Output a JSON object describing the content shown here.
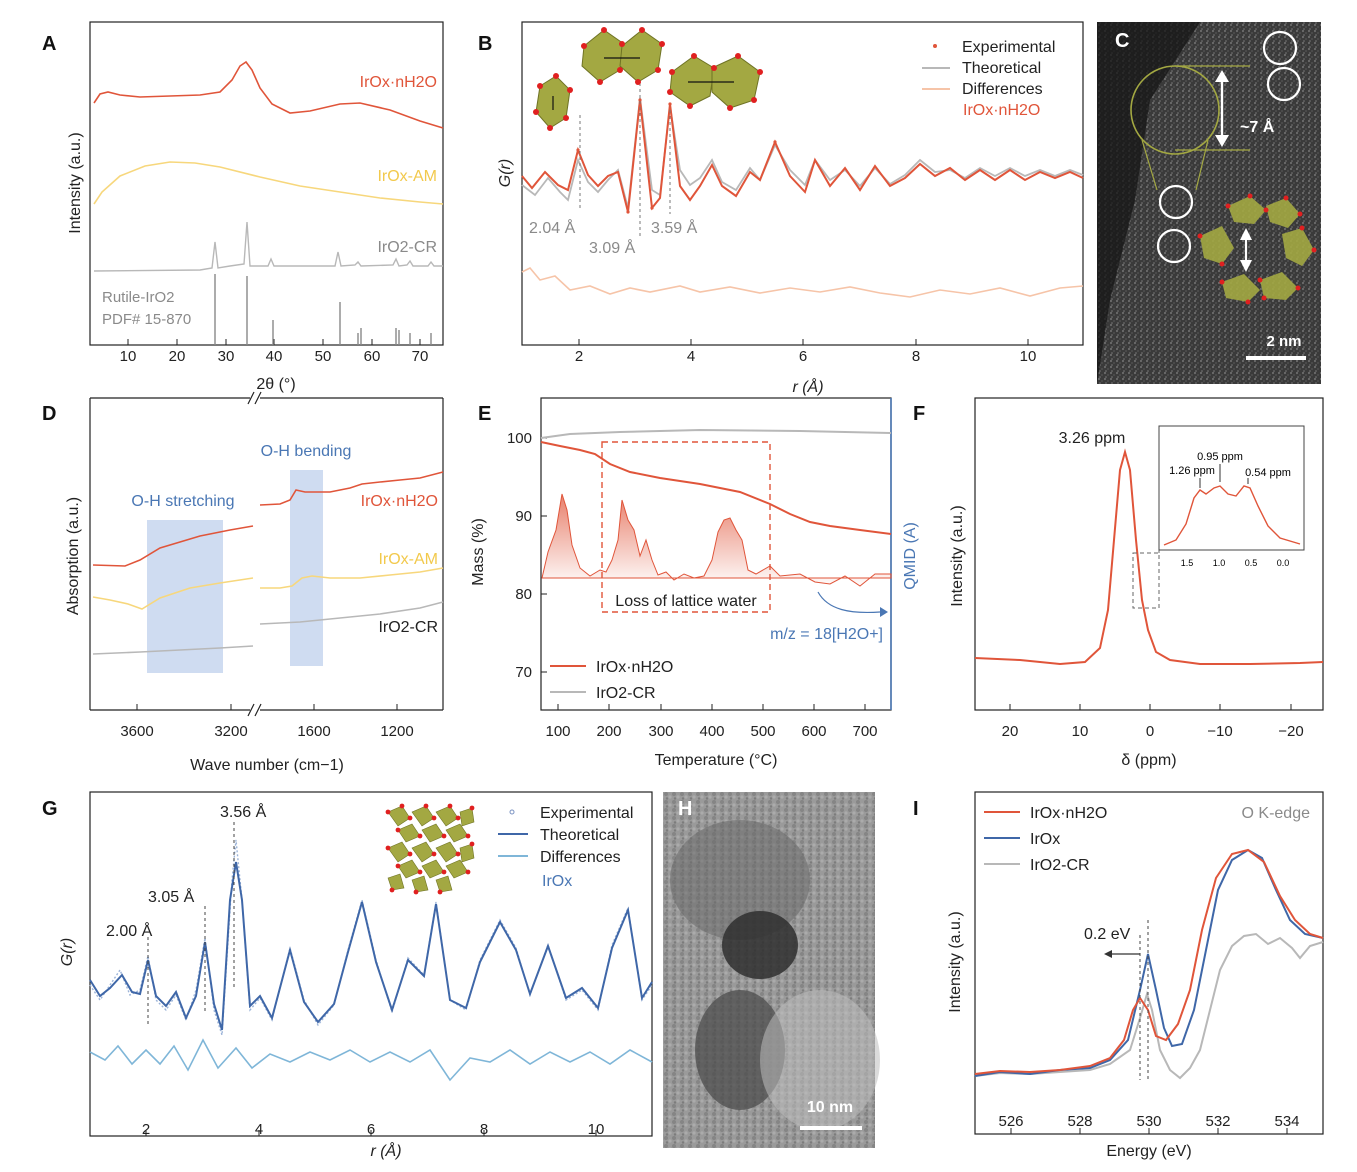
{
  "colors": {
    "red": "#e0553a",
    "gray": "#b8b8b8",
    "yellow": "#f7d77c",
    "peach": "#f6c4a8",
    "blue": "#3f67a8",
    "lightblue": "#7fb6d8",
    "olive": "#a3a842",
    "band": "#c7d6ee"
  },
  "panels": {
    "A": {
      "label": "A",
      "ylabel": "Intensity (a.u.)",
      "xlabel": "2θ (°)",
      "xticks": [
        "10",
        "20",
        "30",
        "40",
        "50",
        "60",
        "70"
      ],
      "series_labels": [
        "IrOx·nH2O",
        "IrOx-AM",
        "IrO2-CR"
      ],
      "ref_line1": "Rutile-IrO2",
      "ref_line2": "PDF# 15-870"
    },
    "B": {
      "label": "B",
      "ylabel": "G(r)",
      "xlabel": "r (Å)",
      "xticks": [
        "2",
        "4",
        "6",
        "8",
        "10"
      ],
      "legend": [
        "Experimental",
        "Theoretical",
        "Differences",
        "IrOx·nH2O"
      ],
      "peaks": [
        "2.04 Å",
        "3.09 Å",
        "3.59 Å"
      ]
    },
    "C": {
      "label": "C",
      "spacing": "~7 Å",
      "scale": "2 nm"
    },
    "D": {
      "label": "D",
      "ylabel": "Absorption (a.u.)",
      "xlabel": "Wave number (cm−1)",
      "xticks": [
        "3600",
        "3200",
        "1600",
        "1200"
      ],
      "band1": "O-H stretching",
      "band2": "O-H bending",
      "series_labels": [
        "IrOx·nH2O",
        "IrOx-AM",
        "IrO2-CR"
      ]
    },
    "E": {
      "label": "E",
      "ylabel": "Mass (%)",
      "y2label": "QMID (A)",
      "xlabel": "Temperature (°C)",
      "xticks": [
        "100",
        "200",
        "300",
        "400",
        "500",
        "600",
        "700"
      ],
      "yticks": [
        "70",
        "80",
        "90",
        "100"
      ],
      "box_label": "Loss of lattice water",
      "ms_label": "m/z = 18[H2O+]",
      "legend": [
        "IrOx·nH2O",
        "IrO2-CR"
      ]
    },
    "F": {
      "label": "F",
      "ylabel": "Intensity (a.u.)",
      "xlabel": "δ (ppm)",
      "xticks": [
        "20",
        "10",
        "0",
        "−10",
        "−20"
      ],
      "peak": "3.26 ppm",
      "inset_peaks": [
        "1.26 ppm",
        "0.95 ppm",
        "0.54 ppm"
      ],
      "inset_ticks": [
        "1.5",
        "1.0",
        "0.5",
        "0.0"
      ]
    },
    "G": {
      "label": "G",
      "ylabel": "G(r)",
      "xlabel": "r (Å)",
      "xticks": [
        "2",
        "4",
        "6",
        "8",
        "10"
      ],
      "legend": [
        "Experimental",
        "Theoretical",
        "Differences",
        "IrOx"
      ],
      "peaks": [
        "2.00  Å",
        "3.05  Å",
        "3.56  Å"
      ]
    },
    "H": {
      "label": "H",
      "scale": "10 nm"
    },
    "I": {
      "label": "I",
      "ylabel": "Intensity (a.u.)",
      "xlabel": "Energy (eV)",
      "xticks": [
        "526",
        "528",
        "530",
        "532",
        "534"
      ],
      "legend": [
        "IrOx·nH2O",
        "IrOx",
        "IrO2-CR"
      ],
      "edge": "O K-edge",
      "shift": "0.2 eV"
    }
  },
  "chart_data": [
    {
      "type": "line",
      "panel": "A",
      "title": "",
      "xlabel": "2θ (°)",
      "ylabel": "Intensity (a.u.)",
      "xlim": [
        2,
        75
      ],
      "series": [
        {
          "name": "IrOx·nH2O",
          "description": "broad amorphous humps",
          "peaks_2theta": [
            5,
            34,
            58
          ]
        },
        {
          "name": "IrOx-AM",
          "description": "broad hump",
          "peaks_2theta": [
            21
          ]
        },
        {
          "name": "IrO2-CR",
          "description": "sharp rutile reflections",
          "peaks_2theta": [
            28,
            34.7,
            40,
            54,
            58,
            66,
            69,
            73
          ]
        }
      ],
      "reference": {
        "name": "Rutile-IrO2 PDF# 15-870",
        "positions": [
          28,
          34.7,
          40,
          54,
          56,
          58,
          65,
          66,
          69,
          73
        ],
        "rel_intensity": [
          0.65,
          1.0,
          0.1,
          0.55,
          0.05,
          0.1,
          0.1,
          0.1,
          0.05,
          0.05
        ]
      }
    },
    {
      "type": "line",
      "panel": "B",
      "xlabel": "r (Å)",
      "ylabel": "G(r)",
      "xlim": [
        1,
        11
      ],
      "peaks_r": [
        2.04,
        3.09,
        3.59
      ],
      "series": [
        "Experimental",
        "Theoretical",
        "Differences"
      ]
    },
    {
      "type": "line",
      "panel": "D",
      "xlabel": "Wave number (cm−1)",
      "ylabel": "Absorption (a.u.)",
      "bands": [
        {
          "name": "O-H stretching",
          "range": [
            3550,
            3250
          ]
        },
        {
          "name": "O-H bending",
          "range": [
            1700,
            1530
          ]
        }
      ],
      "series": [
        "IrOx·nH2O",
        "IrOx-AM",
        "IrO2-CR"
      ]
    },
    {
      "type": "line",
      "panel": "E",
      "xlabel": "Temperature (°C)",
      "ylabel": "Mass (%)",
      "xlim": [
        70,
        750
      ],
      "ylim": [
        65,
        105
      ],
      "series": [
        {
          "name": "IrOx·nH2O",
          "x": [
            70,
            100,
            150,
            180,
            200,
            250,
            300,
            400,
            500,
            550,
            600,
            700,
            750
          ],
          "y": [
            99.5,
            99.0,
            98.5,
            97.8,
            96.5,
            95.0,
            94.2,
            93.0,
            91.2,
            90.0,
            89.0,
            88.0,
            87.6
          ]
        },
        {
          "name": "IrO2-CR",
          "x": [
            70,
            150,
            300,
            500,
            750
          ],
          "y": [
            100.0,
            100.8,
            101.0,
            101.0,
            100.8
          ]
        }
      ],
      "ms_signal": {
        "name": "m/z = 18[H2O+]",
        "peaks_T": [
          110,
          225,
          260,
          425
        ]
      }
    },
    {
      "type": "line",
      "panel": "F",
      "xlabel": "δ (ppm)",
      "ylabel": "Intensity (a.u.)",
      "xlim": [
        25,
        -25
      ],
      "peak_ppm": 3.26,
      "inset_peaks_ppm": [
        1.26,
        0.95,
        0.54
      ]
    },
    {
      "type": "line",
      "panel": "G",
      "xlabel": "r (Å)",
      "ylabel": "G(r)",
      "xlim": [
        1,
        11
      ],
      "peaks_r": [
        2.0,
        3.05,
        3.56
      ],
      "series": [
        "Experimental",
        "Theoretical",
        "Differences"
      ]
    },
    {
      "type": "line",
      "panel": "I",
      "xlabel": "Energy (eV)",
      "ylabel": "Intensity (a.u.)",
      "xlim": [
        525,
        535
      ],
      "series": [
        {
          "name": "IrOx·nH2O",
          "pre_edge_eV": 529.8,
          "main_eV": 533.0
        },
        {
          "name": "IrOx",
          "pre_edge_eV": 530.0,
          "main_eV": 533.0
        },
        {
          "name": "IrO2-CR",
          "pre_edge_eV": 530.0,
          "main_eV": 533.5
        }
      ],
      "shift_eV": 0.2
    }
  ]
}
